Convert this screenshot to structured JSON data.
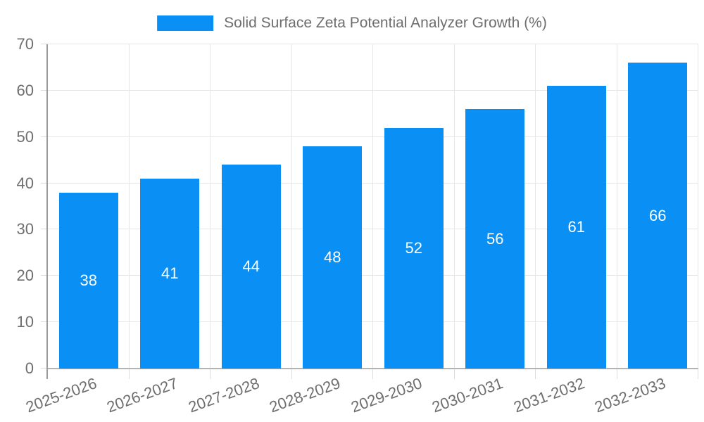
{
  "legend": {
    "label": "Solid Surface Zeta Potential Analyzer Growth (%)"
  },
  "chart_data": {
    "type": "bar",
    "title": "Solid Surface Zeta Potential Analyzer Growth (%)",
    "categories": [
      "2025-2026",
      "2026-2027",
      "2027-2028",
      "2028-2029",
      "2029-2030",
      "2030-2031",
      "2031-2032",
      "2032-2033"
    ],
    "values": [
      38,
      41,
      44,
      48,
      52,
      56,
      61,
      66
    ],
    "xlabel": "",
    "ylabel": "",
    "ylim": [
      0,
      70
    ],
    "ytick_step": 10,
    "ytick_labels": [
      "0",
      "10",
      "20",
      "30",
      "40",
      "50",
      "60",
      "70"
    ],
    "grid": true,
    "legend_position": "top",
    "data_labels": "inside-center",
    "colors": {
      "bar": "#0a90f5",
      "bar_label_text": "#ffffff",
      "tick_text": "#6e6e6e",
      "gridline": "#e6e6e6",
      "x_axis_line": "#b3b3b3",
      "y_axis_line": "#9a9a9a"
    }
  }
}
